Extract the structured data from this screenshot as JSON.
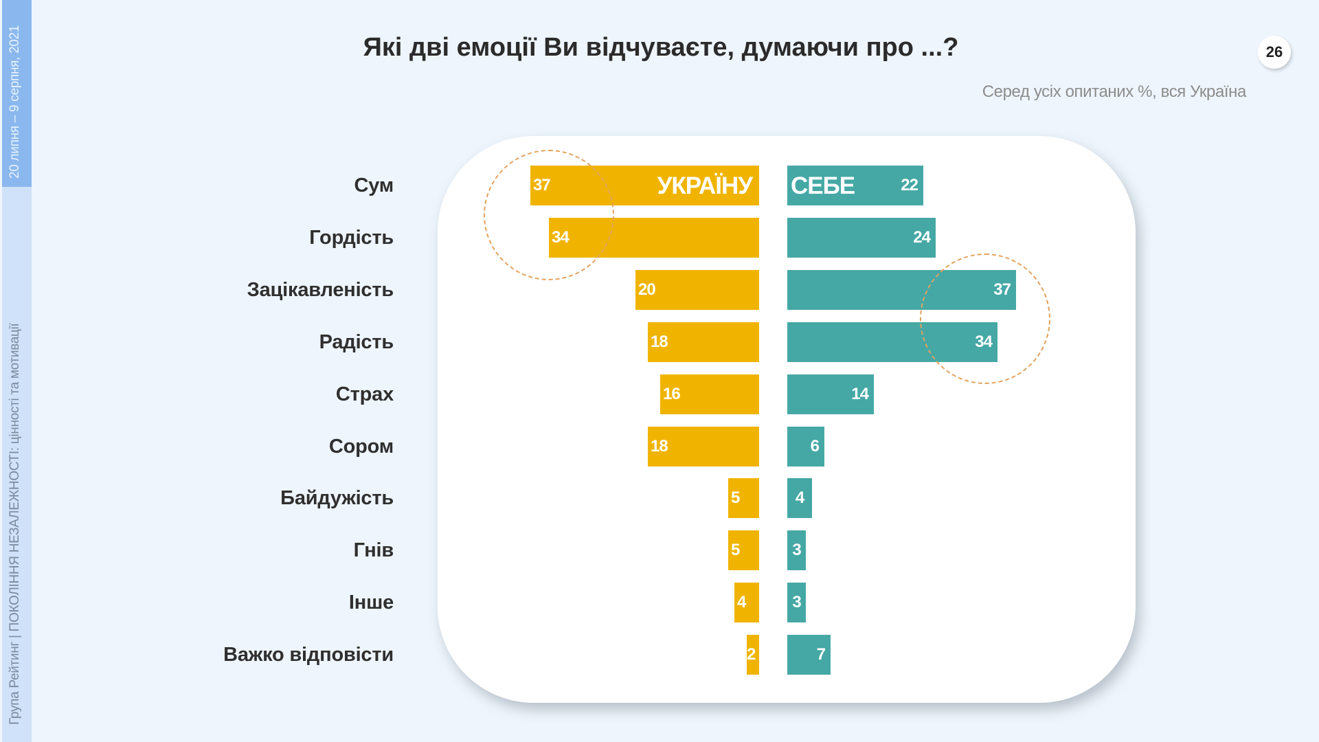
{
  "sidebar": {
    "date": "20 липня – 9 серпня, 2021",
    "project": "Група Рейтинг | ПОКОЛІННЯ НЕЗАЛЕЖНОСТІ: цінності та мотивації"
  },
  "header": {
    "title": "Які дві емоції Ви відчуваєте, думаючи про ...?",
    "subtitle": "Серед усіх опитаних %, вся Україна",
    "page_number": "26"
  },
  "colors": {
    "ukraine": "#f0b400",
    "self": "#45a8a5",
    "highlight": "#e3a25d",
    "background": "#eef5fc"
  },
  "chart_data": {
    "type": "bar",
    "orientation": "horizontal-diverging",
    "title": "Які дві емоції Ви відчуваєте, думаючи про ...?",
    "subtitle": "Серед усіх опитаних %, вся Україна",
    "categories": [
      "Сум",
      "Гордість",
      "Зацікавленість",
      "Радість",
      "Страх",
      "Сором",
      "Байдужість",
      "Гнів",
      "Інше",
      "Важко відповісти"
    ],
    "series": [
      {
        "name": "УКРАЇНУ",
        "color": "#f0b400",
        "values": [
          37,
          34,
          20,
          18,
          16,
          18,
          5,
          5,
          4,
          2
        ]
      },
      {
        "name": "СЕБЕ",
        "color": "#45a8a5",
        "values": [
          22,
          24,
          37,
          34,
          14,
          6,
          4,
          3,
          3,
          7
        ]
      }
    ],
    "units": "%",
    "annotations": [
      {
        "type": "dashed-circle",
        "series": "УКРАЇНУ",
        "categories": [
          "Сум",
          "Гордість"
        ]
      },
      {
        "type": "dashed-circle",
        "series": "СЕБЕ",
        "categories": [
          "Зацікавленість",
          "Радість"
        ]
      }
    ],
    "xlabel": "",
    "ylabel": "",
    "grid": false,
    "legend": "inline-in-first-bar"
  }
}
